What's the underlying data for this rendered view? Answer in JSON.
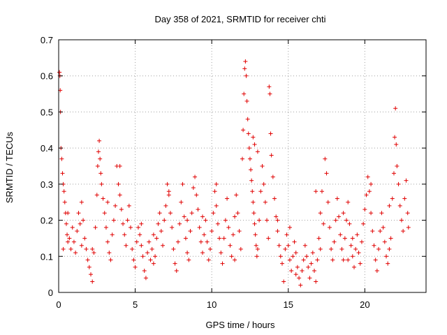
{
  "chart_data": {
    "type": "scatter",
    "title": "Day 358 of 2021, SRMTID for receiver chti",
    "xlabel": "GPS time / hours",
    "ylabel": "SRMTID / TECUs",
    "xlim": [
      0,
      24
    ],
    "ylim": [
      0,
      0.7
    ],
    "xticks": [
      0,
      5,
      10,
      15,
      20
    ],
    "xtick_labels": [
      "0",
      "5",
      "10",
      "15",
      "20"
    ],
    "yticks": [
      0,
      0.1,
      0.2,
      0.3,
      0.4,
      0.5,
      0.6,
      0.7
    ],
    "ytick_labels": [
      "0",
      "0.1",
      "0.2",
      "0.3",
      "0.4",
      "0.5",
      "0.6",
      "0.7"
    ],
    "grid": true,
    "marker": "plus",
    "color": "#e00000",
    "series": [
      {
        "name": "SRMTID",
        "points": [
          [
            0.05,
            0.61
          ],
          [
            0.08,
            0.6
          ],
          [
            0.1,
            0.56
          ],
          [
            0.12,
            0.5
          ],
          [
            0.15,
            0.4
          ],
          [
            0.2,
            0.37
          ],
          [
            0.25,
            0.33
          ],
          [
            0.3,
            0.3
          ],
          [
            0.35,
            0.28
          ],
          [
            0.4,
            0.25
          ],
          [
            0.45,
            0.22
          ],
          [
            0.5,
            0.19
          ],
          [
            0.55,
            0.16
          ],
          [
            0.6,
            0.14
          ],
          [
            0.7,
            0.15
          ],
          [
            0.8,
            0.12
          ],
          [
            0.9,
            0.18
          ],
          [
            1.0,
            0.14
          ],
          [
            1.1,
            0.11
          ],
          [
            1.2,
            0.17
          ],
          [
            1.3,
            0.22
          ],
          [
            1.4,
            0.19
          ],
          [
            1.5,
            0.25
          ],
          [
            1.6,
            0.2
          ],
          [
            1.7,
            0.15
          ],
          [
            1.8,
            0.12
          ],
          [
            1.9,
            0.09
          ],
          [
            2.0,
            0.07
          ],
          [
            2.1,
            0.05
          ],
          [
            2.2,
            0.03
          ],
          [
            2.3,
            0.11
          ],
          [
            2.4,
            0.18
          ],
          [
            2.5,
            0.27
          ],
          [
            2.55,
            0.35
          ],
          [
            2.6,
            0.39
          ],
          [
            2.65,
            0.42
          ],
          [
            2.7,
            0.37
          ],
          [
            2.75,
            0.33
          ],
          [
            2.8,
            0.3
          ],
          [
            2.9,
            0.26
          ],
          [
            3.0,
            0.22
          ],
          [
            3.1,
            0.18
          ],
          [
            3.2,
            0.14
          ],
          [
            3.3,
            0.11
          ],
          [
            3.4,
            0.09
          ],
          [
            3.5,
            0.16
          ],
          [
            3.6,
            0.2
          ],
          [
            3.7,
            0.24
          ],
          [
            3.8,
            0.35
          ],
          [
            3.9,
            0.3
          ],
          [
            4.0,
            0.27
          ],
          [
            4.1,
            0.23
          ],
          [
            4.2,
            0.19
          ],
          [
            4.3,
            0.16
          ],
          [
            4.4,
            0.13
          ],
          [
            4.5,
            0.2
          ],
          [
            4.6,
            0.24
          ],
          [
            4.7,
            0.18
          ],
          [
            4.8,
            0.12
          ],
          [
            4.9,
            0.09
          ],
          [
            5.0,
            0.07
          ],
          [
            5.1,
            0.14
          ],
          [
            5.2,
            0.18
          ],
          [
            5.3,
            0.16
          ],
          [
            5.4,
            0.13
          ],
          [
            5.5,
            0.1
          ],
          [
            5.6,
            0.06
          ],
          [
            5.7,
            0.04
          ],
          [
            5.8,
            0.11
          ],
          [
            5.9,
            0.14
          ],
          [
            6.0,
            0.09
          ],
          [
            6.1,
            0.12
          ],
          [
            6.2,
            0.08
          ],
          [
            6.3,
            0.1
          ],
          [
            6.4,
            0.15
          ],
          [
            6.5,
            0.19
          ],
          [
            6.6,
            0.22
          ],
          [
            6.7,
            0.17
          ],
          [
            6.8,
            0.13
          ],
          [
            6.9,
            0.2
          ],
          [
            7.0,
            0.24
          ],
          [
            7.1,
            0.3
          ],
          [
            7.2,
            0.27
          ],
          [
            7.3,
            0.22
          ],
          [
            7.4,
            0.18
          ],
          [
            7.5,
            0.12
          ],
          [
            7.6,
            0.08
          ],
          [
            7.7,
            0.06
          ],
          [
            7.8,
            0.14
          ],
          [
            7.9,
            0.19
          ],
          [
            8.0,
            0.25
          ],
          [
            8.1,
            0.3
          ],
          [
            8.2,
            0.21
          ],
          [
            8.3,
            0.15
          ],
          [
            8.4,
            0.11
          ],
          [
            8.5,
            0.09
          ],
          [
            8.6,
            0.17
          ],
          [
            8.7,
            0.22
          ],
          [
            8.8,
            0.29
          ],
          [
            8.9,
            0.32
          ],
          [
            9.0,
            0.27
          ],
          [
            9.1,
            0.23
          ],
          [
            9.2,
            0.18
          ],
          [
            9.3,
            0.14
          ],
          [
            9.4,
            0.11
          ],
          [
            9.5,
            0.16
          ],
          [
            9.6,
            0.2
          ],
          [
            9.7,
            0.14
          ],
          [
            9.8,
            0.09
          ],
          [
            9.9,
            0.12
          ],
          [
            10.0,
            0.17
          ],
          [
            10.1,
            0.22
          ],
          [
            10.2,
            0.28
          ],
          [
            10.3,
            0.24
          ],
          [
            10.4,
            0.19
          ],
          [
            10.5,
            0.15
          ],
          [
            10.6,
            0.11
          ],
          [
            10.7,
            0.08
          ],
          [
            10.8,
            0.15
          ],
          [
            10.9,
            0.2
          ],
          [
            11.0,
            0.26
          ],
          [
            11.1,
            0.18
          ],
          [
            11.2,
            0.13
          ],
          [
            11.3,
            0.1
          ],
          [
            11.4,
            0.16
          ],
          [
            11.5,
            0.21
          ],
          [
            11.6,
            0.27
          ],
          [
            11.7,
            0.22
          ],
          [
            11.8,
            0.17
          ],
          [
            11.9,
            0.12
          ],
          [
            12.0,
            0.37
          ],
          [
            12.05,
            0.45
          ],
          [
            12.1,
            0.55
          ],
          [
            12.15,
            0.62
          ],
          [
            12.2,
            0.64
          ],
          [
            12.25,
            0.6
          ],
          [
            12.3,
            0.53
          ],
          [
            12.35,
            0.48
          ],
          [
            12.4,
            0.44
          ],
          [
            12.45,
            0.4
          ],
          [
            12.5,
            0.37
          ],
          [
            12.55,
            0.34
          ],
          [
            12.6,
            0.31
          ],
          [
            12.65,
            0.28
          ],
          [
            12.7,
            0.25
          ],
          [
            12.75,
            0.22
          ],
          [
            12.8,
            0.19
          ],
          [
            12.85,
            0.16
          ],
          [
            12.9,
            0.13
          ],
          [
            12.95,
            0.1
          ],
          [
            13.0,
            0.12
          ],
          [
            13.1,
            0.2
          ],
          [
            13.2,
            0.28
          ],
          [
            13.3,
            0.35
          ],
          [
            13.4,
            0.3
          ],
          [
            13.5,
            0.25
          ],
          [
            13.6,
            0.2
          ],
          [
            13.7,
            0.15
          ],
          [
            13.75,
            0.57
          ],
          [
            13.8,
            0.55
          ],
          [
            13.85,
            0.44
          ],
          [
            13.9,
            0.38
          ],
          [
            14.0,
            0.32
          ],
          [
            14.1,
            0.26
          ],
          [
            14.2,
            0.21
          ],
          [
            14.3,
            0.17
          ],
          [
            14.4,
            0.13
          ],
          [
            14.5,
            0.1
          ],
          [
            14.6,
            0.08
          ],
          [
            14.7,
            0.03
          ],
          [
            14.8,
            0.12
          ],
          [
            14.9,
            0.16
          ],
          [
            15.0,
            0.13
          ],
          [
            15.1,
            0.09
          ],
          [
            15.2,
            0.06
          ],
          [
            15.3,
            0.1
          ],
          [
            15.4,
            0.14
          ],
          [
            15.5,
            0.11
          ],
          [
            15.6,
            0.07
          ],
          [
            15.7,
            0.04
          ],
          [
            15.8,
            0.02
          ],
          [
            15.9,
            0.06
          ],
          [
            16.0,
            0.09
          ],
          [
            16.1,
            0.13
          ],
          [
            16.2,
            0.1
          ],
          [
            16.3,
            0.07
          ],
          [
            16.4,
            0.04
          ],
          [
            16.5,
            0.08
          ],
          [
            16.6,
            0.11
          ],
          [
            16.7,
            0.06
          ],
          [
            16.8,
            0.03
          ],
          [
            16.9,
            0.09
          ],
          [
            17.0,
            0.15
          ],
          [
            17.1,
            0.22
          ],
          [
            17.2,
            0.28
          ],
          [
            17.3,
            0.19
          ],
          [
            17.4,
            0.37
          ],
          [
            17.5,
            0.33
          ],
          [
            17.6,
            0.25
          ],
          [
            17.7,
            0.18
          ],
          [
            17.8,
            0.12
          ],
          [
            17.9,
            0.09
          ],
          [
            18.0,
            0.14
          ],
          [
            18.1,
            0.2
          ],
          [
            18.2,
            0.26
          ],
          [
            18.3,
            0.21
          ],
          [
            18.4,
            0.16
          ],
          [
            18.5,
            0.12
          ],
          [
            18.6,
            0.09
          ],
          [
            18.7,
            0.15
          ],
          [
            18.8,
            0.2
          ],
          [
            18.9,
            0.25
          ],
          [
            19.0,
            0.19
          ],
          [
            19.1,
            0.13
          ],
          [
            19.2,
            0.1
          ],
          [
            19.3,
            0.07
          ],
          [
            19.4,
            0.12
          ],
          [
            19.5,
            0.16
          ],
          [
            19.6,
            0.11
          ],
          [
            19.7,
            0.08
          ],
          [
            19.8,
            0.14
          ],
          [
            19.9,
            0.19
          ],
          [
            20.0,
            0.23
          ],
          [
            20.1,
            0.27
          ],
          [
            20.2,
            0.32
          ],
          [
            20.3,
            0.28
          ],
          [
            20.4,
            0.22
          ],
          [
            20.5,
            0.17
          ],
          [
            20.6,
            0.13
          ],
          [
            20.7,
            0.09
          ],
          [
            20.8,
            0.06
          ],
          [
            20.9,
            0.12
          ],
          [
            21.0,
            0.17
          ],
          [
            21.1,
            0.22
          ],
          [
            21.2,
            0.18
          ],
          [
            21.3,
            0.14
          ],
          [
            21.4,
            0.1
          ],
          [
            21.5,
            0.08
          ],
          [
            21.6,
            0.12
          ],
          [
            21.7,
            0.15
          ],
          [
            21.8,
            0.26
          ],
          [
            21.9,
            0.33
          ],
          [
            21.95,
            0.43
          ],
          [
            22.0,
            0.51
          ],
          [
            22.05,
            0.41
          ],
          [
            22.1,
            0.35
          ],
          [
            22.2,
            0.3
          ],
          [
            22.3,
            0.24
          ],
          [
            22.4,
            0.2
          ],
          [
            22.5,
            0.17
          ],
          [
            22.6,
            0.26
          ],
          [
            22.7,
            0.31
          ],
          [
            22.8,
            0.22
          ],
          [
            22.85,
            0.18
          ],
          [
            12.7,
            0.43
          ],
          [
            12.8,
            0.41
          ],
          [
            13.0,
            0.39
          ],
          [
            2.2,
            0.12
          ],
          [
            4.0,
            0.35
          ],
          [
            7.2,
            0.28
          ],
          [
            9.4,
            0.21
          ],
          [
            10.3,
            0.3
          ],
          [
            15.1,
            0.18
          ],
          [
            16.8,
            0.28
          ],
          [
            18.6,
            0.22
          ],
          [
            19.2,
            0.15
          ],
          [
            20.4,
            0.3
          ],
          [
            0.3,
            0.12
          ],
          [
            0.6,
            0.22
          ],
          [
            1.5,
            0.13
          ],
          [
            3.2,
            0.25
          ],
          [
            5.4,
            0.19
          ],
          [
            6.2,
            0.16
          ],
          [
            8.4,
            0.2
          ],
          [
            11.5,
            0.09
          ],
          [
            14.3,
            0.2
          ],
          [
            15.5,
            0.05
          ],
          [
            17.1,
            0.12
          ],
          [
            18.9,
            0.09
          ],
          [
            21.6,
            0.24
          ]
        ]
      }
    ]
  }
}
